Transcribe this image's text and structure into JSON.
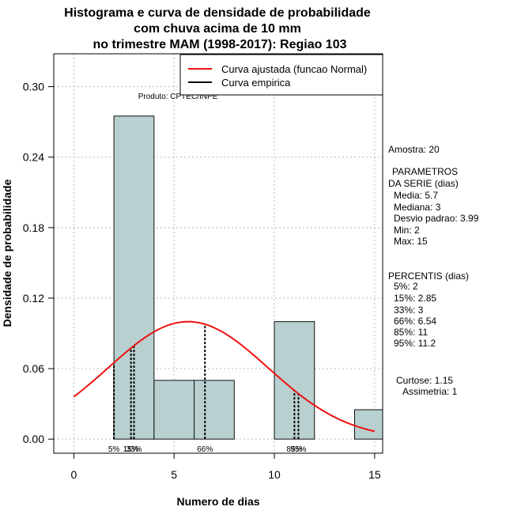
{
  "chart_data": {
    "type": "bar",
    "title_lines": [
      "Histograma e curva de densidade de probabilidade",
      "com chuva acima de 10 mm",
      "no trimestre MAM (1998-2017): Regiao 103"
    ],
    "xlabel": "Numero de dias",
    "ylabel": "Densidade de probabilidade",
    "xlim": [
      -1,
      15.4
    ],
    "ylim": [
      -0.012,
      0.328
    ],
    "x_ticks": [
      0,
      5,
      10,
      15
    ],
    "y_ticks": [
      0.0,
      0.06,
      0.12,
      0.18,
      0.24,
      0.3
    ],
    "y_tick_labels": [
      "0.00",
      "0.06",
      "0.12",
      "0.18",
      "0.24",
      "0.30"
    ],
    "bins": [
      {
        "from": 2,
        "to": 4,
        "density": 0.275
      },
      {
        "from": 4,
        "to": 6,
        "density": 0.05
      },
      {
        "from": 6,
        "to": 8,
        "density": 0.05
      },
      {
        "from": 8,
        "to": 10,
        "density": 0.0
      },
      {
        "from": 10,
        "to": 12,
        "density": 0.1
      },
      {
        "from": 12,
        "to": 14,
        "density": 0.0
      },
      {
        "from": 14,
        "to": 16,
        "density": 0.025
      }
    ],
    "normal_curve": {
      "mean": 5.7,
      "sd": 3.99,
      "x_from": 0,
      "x_to": 15
    },
    "percentile_lines": [
      {
        "label": "5%",
        "value": 2
      },
      {
        "label": "15%",
        "value": 2.85
      },
      {
        "label": "33%",
        "value": 3
      },
      {
        "label": "66%",
        "value": 6.54
      },
      {
        "label": "85%",
        "value": 11
      },
      {
        "label": "95%",
        "value": 11.2
      }
    ],
    "percentile_markers": [
      {
        "text": "5%",
        "x": 2
      },
      {
        "text": "15%",
        "x": 2.85
      },
      {
        "text": "33%",
        "x": 3
      },
      {
        "text": "66%",
        "x": 6.54
      },
      {
        "text": "85%",
        "x": 11
      },
      {
        "text": "95%",
        "x": 11.2
      }
    ],
    "legend": {
      "placement": "top-right",
      "entries": [
        {
          "label": "Curva ajustada (funcao Normal)",
          "color": "#ee1111"
        },
        {
          "label": "Curva empirica",
          "color": "#000000"
        }
      ]
    },
    "credit": "Produto: CPTEC/INPE",
    "colors": {
      "bar_fill": "#b8d0cf",
      "bar_stroke": "#111111",
      "grid": "#bbbbbb",
      "curve": "#ee1111"
    }
  },
  "stats": {
    "amostra": "Amostra: 20",
    "param_header1": "PARAMETROS",
    "param_header2": "DA SERIE (dias)",
    "media": "Media: 5.7",
    "mediana": "Mediana: 3",
    "desvio": "Desvio padrao: 3.99",
    "min": "Min: 2",
    "max": "Max: 15",
    "percentis_header": "PERCENTIS (dias)",
    "p5": "5%: 2",
    "p15": "15%: 2.85",
    "p33": "33%: 3",
    "p66": "66%: 6.54",
    "p85": "85%: 11",
    "p95": "95%: 11.2",
    "curtose": "Curtose: 1.15",
    "assimetria": "Assimetria: 1"
  }
}
